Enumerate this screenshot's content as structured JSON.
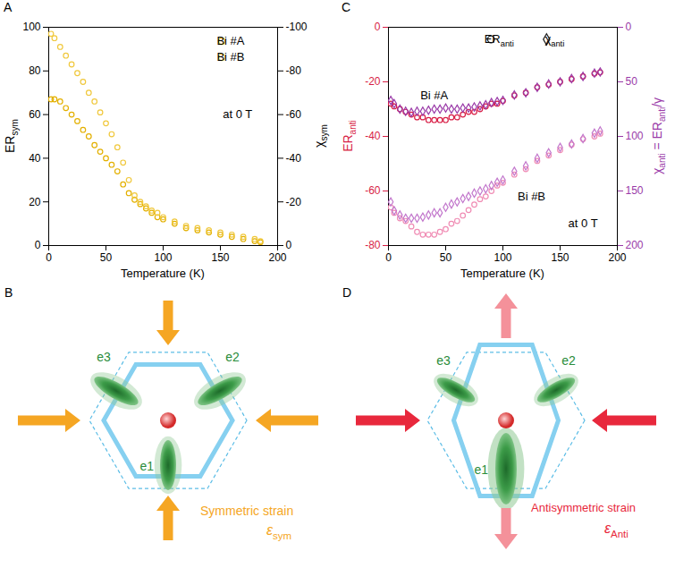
{
  "chart_data": [
    {
      "panel": "A",
      "type": "scatter",
      "x_label": "Temperature (K)",
      "y_label": [
        {
          "text": "ER"
        },
        {
          "text": "sym",
          "sub": true
        }
      ],
      "y2_label": [
        {
          "text": "χ"
        },
        {
          "text": "sym",
          "sub": true
        }
      ],
      "x": [
        2,
        5,
        10,
        15,
        20,
        25,
        30,
        35,
        40,
        45,
        50,
        55,
        60,
        65,
        70,
        75,
        80,
        85,
        90,
        95,
        100,
        110,
        120,
        130,
        140,
        150,
        160,
        170,
        180,
        185
      ],
      "series": [
        {
          "name": "Bi #A",
          "color": "#e3b000",
          "marker": "circle",
          "values": [
            67,
            67,
            66,
            63,
            60,
            57,
            53,
            50,
            46,
            43,
            40,
            37,
            34,
            28,
            24,
            21,
            19,
            17,
            15,
            13,
            12,
            10,
            8,
            7,
            6,
            5,
            4,
            3,
            2,
            1.5
          ]
        },
        {
          "name": "Bi #B",
          "color": "#f0c83c",
          "marker": "circle",
          "values": [
            97,
            95,
            91,
            87,
            83,
            79,
            75,
            70,
            66,
            61,
            56,
            51,
            45,
            38,
            30,
            23,
            20,
            18,
            16,
            15,
            13,
            11,
            9,
            8,
            7,
            6,
            5,
            4,
            3,
            2
          ]
        }
      ],
      "xlim": [
        0,
        200
      ],
      "xticks": [
        0,
        50,
        100,
        150,
        200
      ],
      "ylim": [
        0,
        100
      ],
      "yticks": [
        0,
        20,
        40,
        60,
        80,
        100
      ],
      "y2lim": [
        0,
        -100
      ],
      "y2ticks": [
        0,
        -20,
        -40,
        -60,
        -80,
        -100
      ],
      "legend": "top-right",
      "annotations": [
        {
          "text": "at 0 T",
          "x": 165,
          "y": 60
        }
      ]
    },
    {
      "panel": "C",
      "type": "scatter",
      "x_label": "Temperature (K)",
      "y_label": [
        {
          "text": "ER"
        },
        {
          "text": "anti",
          "sub": true
        }
      ],
      "y2_label": [
        {
          "text": "χ"
        },
        {
          "text": "anti",
          "sub": true
        },
        {
          "text": " = ER"
        },
        {
          "text": "anti",
          "sub": true
        },
        {
          "text": "/γ"
        }
      ],
      "x": [
        2,
        5,
        10,
        15,
        20,
        25,
        30,
        35,
        40,
        45,
        50,
        55,
        60,
        65,
        70,
        75,
        80,
        85,
        90,
        95,
        100,
        110,
        120,
        130,
        140,
        150,
        160,
        170,
        180,
        185
      ],
      "series": [
        {
          "name": [
            {
              "text": "ER"
            },
            {
              "text": "anti",
              "sub": true
            }
          ],
          "color": "#d81e46",
          "marker": "circle",
          "values": [
            -28,
            -29,
            -30,
            -31,
            -32,
            -33,
            -33,
            -34,
            -34,
            -34,
            -34,
            -33,
            -33,
            -32,
            -31,
            -31,
            -30,
            -29,
            -28,
            -28,
            -27,
            -25,
            -24,
            -22,
            -21,
            -20,
            -19,
            -18,
            -17,
            -16.5
          ]
        },
        {
          "name": [
            {
              "text": "χ"
            },
            {
              "text": "anti",
              "sub": true
            }
          ],
          "color": "#9a3aa8",
          "marker": "diamond",
          "axis": "y2",
          "values": [
            67,
            70,
            75,
            77,
            78,
            77,
            77,
            76,
            75,
            75,
            74,
            75,
            75,
            74,
            74,
            73,
            72,
            71,
            69,
            68,
            67,
            62,
            60,
            55,
            52,
            50,
            47,
            45,
            42,
            41
          ]
        },
        {
          "name": [
            {
              "text": "ER"
            },
            {
              "text": "anti",
              "sub": true
            }
          ],
          "color": "#f08cb4",
          "marker": "circle",
          "values": [
            -66,
            -68,
            -70,
            -71,
            -73,
            -75,
            -76,
            -76,
            -76,
            -75,
            -74,
            -72,
            -71,
            -69,
            -67,
            -65,
            -63,
            -62,
            -60,
            -58,
            -57,
            -54,
            -52,
            -49,
            -47,
            -45,
            -43,
            -41,
            -40,
            -39
          ]
        },
        {
          "name": [
            {
              "text": "χ"
            },
            {
              "text": "anti",
              "sub": true
            }
          ],
          "color": "#c277cc",
          "marker": "diamond",
          "axis": "y2",
          "values": [
            160,
            168,
            172,
            175,
            175,
            175,
            174,
            172,
            170,
            170,
            165,
            162,
            160,
            157,
            155,
            152,
            150,
            148,
            145,
            142,
            140,
            132,
            127,
            120,
            115,
            110,
            107,
            102,
            97,
            95
          ]
        }
      ],
      "xlim": [
        0,
        200
      ],
      "xticks": [
        0,
        50,
        100,
        150,
        200
      ],
      "ylim": [
        -80,
        0
      ],
      "yticks": [
        -80,
        -60,
        -40,
        -20,
        0
      ],
      "y2lim": [
        200,
        0
      ],
      "y2ticks": [
        200,
        150,
        100,
        50,
        0
      ],
      "legend": "top",
      "annotations": [
        {
          "text": "Bi #A",
          "x": 40,
          "y": -25
        },
        {
          "text": "Bi #B",
          "x": 125,
          "y": -62
        },
        {
          "text": "at 0 T",
          "x": 170,
          "y": -72
        }
      ]
    }
  ],
  "diagrams": [
    {
      "panel": "B",
      "labels": [
        "e1",
        "e2",
        "e3"
      ],
      "caption": "Symmetric strain",
      "symbol": [
        {
          "text": "ε",
          "italic": true
        },
        {
          "text": "sym",
          "sub": true
        }
      ]
    },
    {
      "panel": "D",
      "labels": [
        "e1",
        "e2",
        "e3"
      ],
      "caption": "Antisymmetric strain",
      "symbol": [
        {
          "text": "ε",
          "italic": true
        },
        {
          "text": "Anti",
          "sub": true
        }
      ]
    }
  ]
}
